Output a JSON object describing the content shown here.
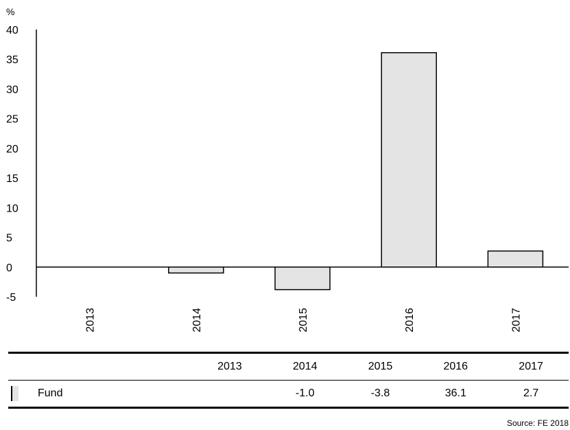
{
  "chart_data": {
    "type": "bar",
    "ylabel": "%",
    "categories": [
      "2013",
      "2014",
      "2015",
      "2016",
      "2017"
    ],
    "series": [
      {
        "name": "Fund",
        "values": [
          null,
          -1.0,
          -3.8,
          36.1,
          2.7
        ],
        "color": "#e4e4e4"
      }
    ],
    "ylim": [
      -5,
      40
    ],
    "yticks": [
      40,
      35,
      30,
      25,
      20,
      15,
      10,
      5,
      0,
      -5
    ],
    "grid": false,
    "legend": "table-below"
  },
  "table": {
    "columns": [
      "2013",
      "2014",
      "2015",
      "2016",
      "2017"
    ],
    "rows": [
      {
        "name": "Fund",
        "values": [
          "",
          "-1.0",
          "-3.8",
          "36.1",
          "2.7"
        ]
      }
    ]
  },
  "source": "Source: FE 2018"
}
